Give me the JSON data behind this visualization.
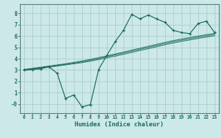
{
  "xlabel": "Humidex (Indice chaleur)",
  "bg_color": "#cce8e8",
  "grid_color": "#aacccc",
  "line_color": "#1a6b5a",
  "xlim": [
    -0.5,
    23.5
  ],
  "ylim": [
    -0.8,
    8.8
  ],
  "xtick_labels": [
    "0",
    "1",
    "2",
    "3",
    "4",
    "5",
    "6",
    "7",
    "8",
    "9",
    "10",
    "11",
    "12",
    "13",
    "14",
    "15",
    "16",
    "17",
    "18",
    "19",
    "20",
    "21",
    "22",
    "23"
  ],
  "ytick_values": [
    0,
    1,
    2,
    3,
    4,
    5,
    6,
    7,
    8
  ],
  "ytick_labels": [
    "-0",
    "1",
    "2",
    "3",
    "4",
    "5",
    "6",
    "7",
    "8"
  ],
  "main_y": [
    3.0,
    3.05,
    3.1,
    3.3,
    2.7,
    0.5,
    0.8,
    -0.25,
    -0.05,
    3.05,
    4.3,
    5.5,
    6.5,
    7.9,
    7.5,
    7.85,
    7.5,
    7.2,
    6.5,
    6.3,
    6.2,
    7.1,
    7.3,
    6.3
  ],
  "line1_y": [
    2.95,
    3.05,
    3.15,
    3.25,
    3.35,
    3.45,
    3.55,
    3.65,
    3.78,
    3.92,
    4.07,
    4.22,
    4.38,
    4.55,
    4.72,
    4.88,
    5.05,
    5.22,
    5.38,
    5.52,
    5.65,
    5.78,
    5.9,
    6.02
  ],
  "line2_y": [
    3.0,
    3.1,
    3.2,
    3.3,
    3.4,
    3.5,
    3.6,
    3.72,
    3.86,
    4.01,
    4.17,
    4.33,
    4.49,
    4.66,
    4.83,
    4.99,
    5.16,
    5.33,
    5.49,
    5.63,
    5.76,
    5.89,
    6.01,
    6.13
  ],
  "line3_y": [
    3.05,
    3.15,
    3.25,
    3.35,
    3.45,
    3.55,
    3.67,
    3.8,
    3.94,
    4.09,
    4.25,
    4.41,
    4.58,
    4.75,
    4.92,
    5.09,
    5.26,
    5.43,
    5.59,
    5.73,
    5.86,
    5.99,
    6.11,
    6.23
  ]
}
